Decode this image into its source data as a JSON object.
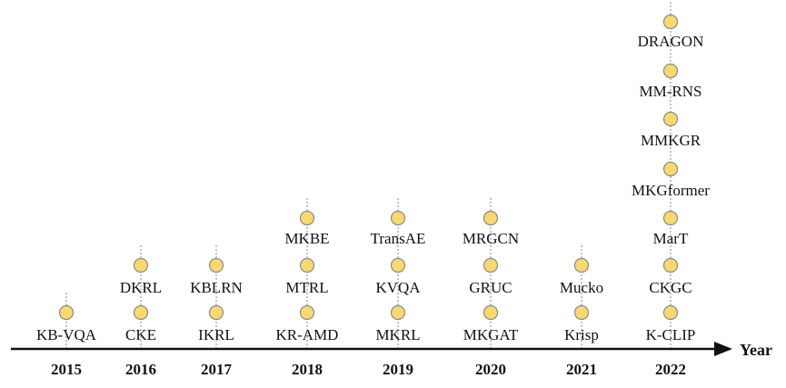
{
  "axis_label": "Year",
  "colors": {
    "node_fill": "#F8D96E",
    "node_stroke": "#8a8a8a",
    "axis": "#111111",
    "guide": "#888888"
  },
  "columns": [
    {
      "year": "2015",
      "items": [
        "KB-VQA"
      ]
    },
    {
      "year": "2016",
      "items": [
        "CKE",
        "DKRL"
      ]
    },
    {
      "year": "2017",
      "items": [
        "IKRL",
        "KBLRN"
      ]
    },
    {
      "year": "2018",
      "items": [
        "KR-AMD",
        "MTRL",
        "MKBE"
      ]
    },
    {
      "year": "2019",
      "items": [
        "MKRL",
        "KVQA",
        "TransAE"
      ]
    },
    {
      "year": "2020",
      "items": [
        "MKGAT",
        "GRUC",
        "MRGCN"
      ]
    },
    {
      "year": "2021",
      "items": [
        "Krisp",
        "Mucko"
      ]
    },
    {
      "year": "2022",
      "items": [
        "K-CLIP",
        "CKGC",
        "MarT",
        "MKGformer",
        "MMKGR",
        "MM-RNS",
        "DRAGON"
      ]
    }
  ]
}
